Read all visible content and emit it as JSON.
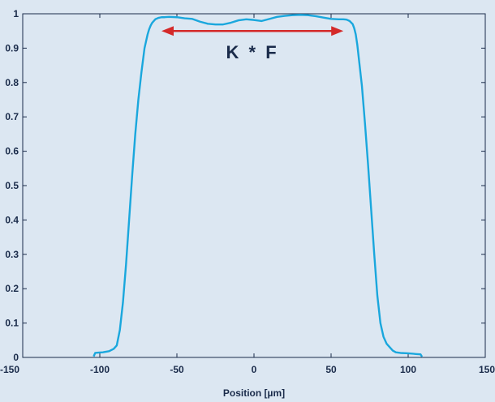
{
  "chart_data": {
    "type": "line",
    "title": "",
    "xlabel": "Position [µm]",
    "ylabel": "",
    "xlim": [
      -150,
      150
    ],
    "ylim": [
      0,
      1
    ],
    "xticks": [
      "-150",
      "-100",
      "-50",
      "0",
      "50",
      "100",
      "150"
    ],
    "yticks": [
      "0",
      "0.1",
      "0.2",
      "0.3",
      "0.4",
      "0.5",
      "0.6",
      "0.7",
      "0.8",
      "0.9",
      "1"
    ],
    "grid": false,
    "line_color": "#1aa7dd",
    "series": [
      {
        "name": "",
        "x": [
          -104,
          -103,
          -101,
          -98,
          -94,
          -91,
          -89,
          -87,
          -85,
          -83,
          -81,
          -79,
          -77,
          -75,
          -73,
          -71,
          -69,
          -68,
          -67,
          -66,
          -64,
          -62,
          -60,
          -58,
          -55,
          -50,
          -45,
          -40,
          -35,
          -30,
          -25,
          -20,
          -15,
          -10,
          -5,
          0,
          5,
          10,
          15,
          20,
          25,
          30,
          35,
          40,
          45,
          50,
          55,
          58,
          60,
          62,
          64,
          65,
          66,
          67,
          68,
          70,
          72,
          74,
          76,
          78,
          80,
          82,
          84,
          86,
          88,
          90,
          92,
          95,
          100,
          105,
          108,
          109
        ],
        "y": [
          0.003,
          0.013,
          0.014,
          0.015,
          0.018,
          0.025,
          0.035,
          0.08,
          0.16,
          0.27,
          0.4,
          0.53,
          0.65,
          0.75,
          0.83,
          0.9,
          0.94,
          0.955,
          0.966,
          0.974,
          0.984,
          0.988,
          0.99,
          0.99,
          0.991,
          0.99,
          0.987,
          0.985,
          0.977,
          0.971,
          0.969,
          0.969,
          0.974,
          0.981,
          0.984,
          0.982,
          0.979,
          0.985,
          0.991,
          0.994,
          0.996,
          0.997,
          0.996,
          0.993,
          0.989,
          0.985,
          0.984,
          0.984,
          0.983,
          0.979,
          0.97,
          0.958,
          0.94,
          0.91,
          0.87,
          0.79,
          0.68,
          0.56,
          0.43,
          0.3,
          0.18,
          0.1,
          0.06,
          0.04,
          0.03,
          0.02,
          0.015,
          0.013,
          0.012,
          0.01,
          0.009,
          0.002
        ]
      }
    ],
    "annotations": [
      {
        "text": "K * F",
        "arrow_x": [
          -60,
          58
        ],
        "arrow_y": 0.95,
        "arrow_color": "#d42a2a"
      }
    ]
  }
}
